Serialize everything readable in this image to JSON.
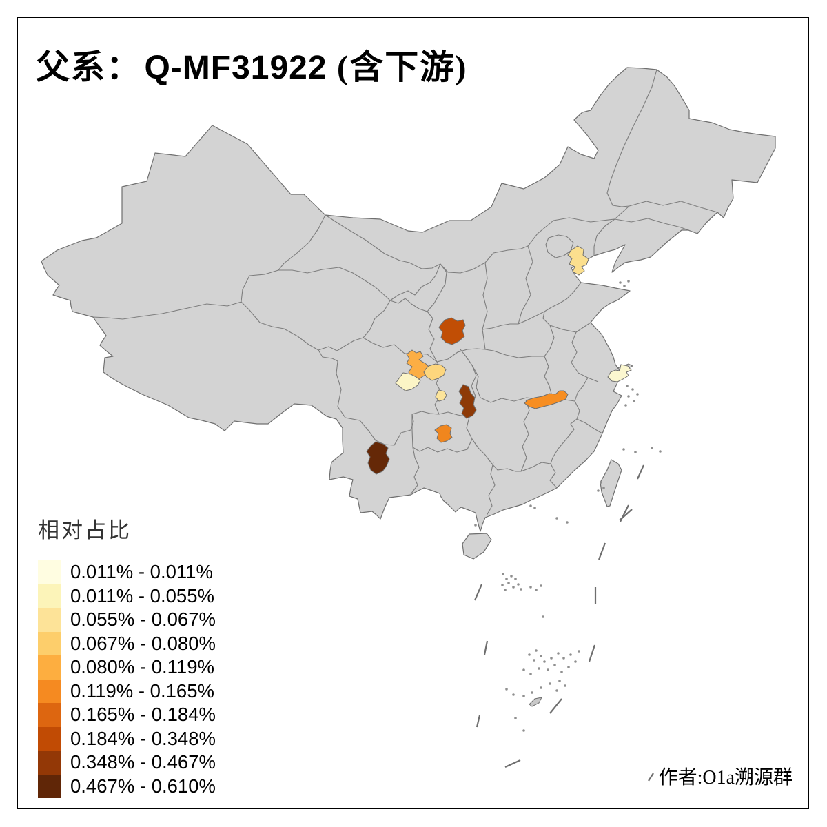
{
  "title": {
    "prefix": "父系：",
    "main": " Q-MF31922 ",
    "suffix": "(含下游)"
  },
  "legend": {
    "title": "相对占比",
    "items": [
      {
        "range": "0.011% - 0.011%",
        "color": "#FFFDE1"
      },
      {
        "range": "0.011% - 0.055%",
        "color": "#FCF4B9"
      },
      {
        "range": "0.055% - 0.067%",
        "color": "#FDE398"
      },
      {
        "range": "0.067% - 0.080%",
        "color": "#FDCE6B"
      },
      {
        "range": "0.080% - 0.119%",
        "color": "#FDAE40"
      },
      {
        "range": "0.119% - 0.165%",
        "color": "#F58A21"
      },
      {
        "range": "0.165% - 0.184%",
        "color": "#DD6610"
      },
      {
        "range": "0.184% - 0.348%",
        "color": "#C14B04"
      },
      {
        "range": "0.348% - 0.467%",
        "color": "#933806"
      },
      {
        "range": "0.467% - 0.610%",
        "color": "#602607"
      }
    ]
  },
  "credit": "作者:O1a溯源群",
  "map": {
    "base_fill": "#D3D3D3",
    "province_line_color": "#7D7D7D",
    "coast_line_color": "#6F6F6F",
    "region_outline_color": "#6F6F6F",
    "sea_speck_color": "#8F8F8F",
    "background": "#FFFFFF",
    "frame_color": "#000000",
    "regions": [
      {
        "id": "tianjin-area",
        "range": "0.055% - 0.067%",
        "color": "#FBDF8E"
      },
      {
        "id": "east-gansu-area",
        "range": "0.184% - 0.348%",
        "color": "#C14E05"
      },
      {
        "id": "south-gansu-area",
        "range": "0.080% - 0.119%",
        "color": "#FCAE44"
      },
      {
        "id": "north-sichuan-area",
        "range": "0.067% - 0.080%",
        "color": "#FDD67D"
      },
      {
        "id": "west-sichuan-area",
        "range": "0.011% - 0.055%",
        "color": "#FCF5C6"
      },
      {
        "id": "central-sichuan-area",
        "range": "0.055% - 0.067%",
        "color": "#FCE49A"
      },
      {
        "id": "chongqing-area",
        "range": "0.348% - 0.467%",
        "color": "#8E3A07"
      },
      {
        "id": "guizhou-area",
        "range": "0.119% - 0.165%",
        "color": "#F0861E"
      },
      {
        "id": "west-yunnan-area",
        "range": "0.467% - 0.610%",
        "color": "#652807"
      },
      {
        "id": "north-hunan-area",
        "range": "0.119% - 0.165%",
        "color": "#F78E22"
      },
      {
        "id": "south-jiangsu-area",
        "range": "0.011% - 0.011%",
        "color": "#FBF7D0"
      }
    ]
  }
}
